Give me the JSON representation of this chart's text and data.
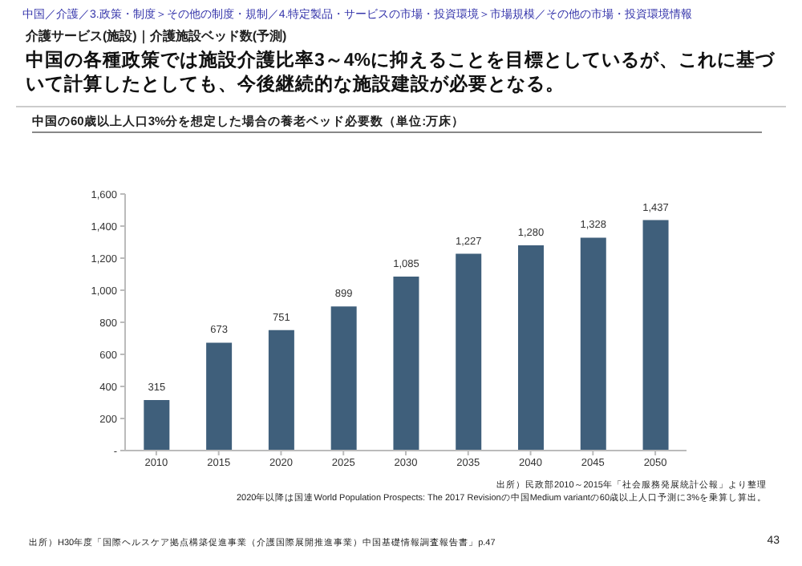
{
  "chart_data": {
    "type": "bar",
    "title": "中国の各種政策では施設介護比率3～4%に抑えることを目標としているが、これに基づいて計算したとしても、今後継続的な施設建設が必要となる。",
    "subtitle": "中国の60歳以上人口3%分を想定した場合の養老ベッド必要数（単位:万床）",
    "categories": [
      "2010",
      "2015",
      "2020",
      "2025",
      "2030",
      "2035",
      "2040",
      "2045",
      "2050"
    ],
    "values": [
      315,
      673,
      751,
      899,
      1085,
      1227,
      1280,
      1328,
      1437
    ],
    "value_labels": [
      "315",
      "673",
      "751",
      "899",
      "1,085",
      "1,227",
      "1,280",
      "1,328",
      "1,437"
    ],
    "color": "#3f5f7b",
    "ylim": [
      0,
      1600
    ],
    "yticks": [
      {
        "value": 0,
        "label": "-"
      },
      200,
      400,
      600,
      800,
      {
        "value": 1000,
        "label": "1,000"
      },
      {
        "value": 1200,
        "label": "1,200"
      },
      {
        "value": 1400,
        "label": "1,400"
      },
      {
        "value": 1600,
        "label": "1,600"
      }
    ],
    "annotations": [
      "中国／介護／3.政策・制度＞その他の制度・規制／4.特定製品・サービスの市場・投資環境＞市場規模／その他の市場・投資環境情報",
      "介護サービス(施設)｜介護施設ベッド数(予測)",
      "出所）民政部2010～2015年「社会服務発展統計公報」より整理",
      "2020年以降は国連World Population Prospects: The 2017 Revisionの中国Medium variantの60歳以上人口予測に3%を乗算し算出。",
      "出所）H30年度「国際ヘルスケア拠点構築促進事業（介護国際展開推進事業）中国基礎情報調査報告書」p.47",
      "43"
    ]
  }
}
